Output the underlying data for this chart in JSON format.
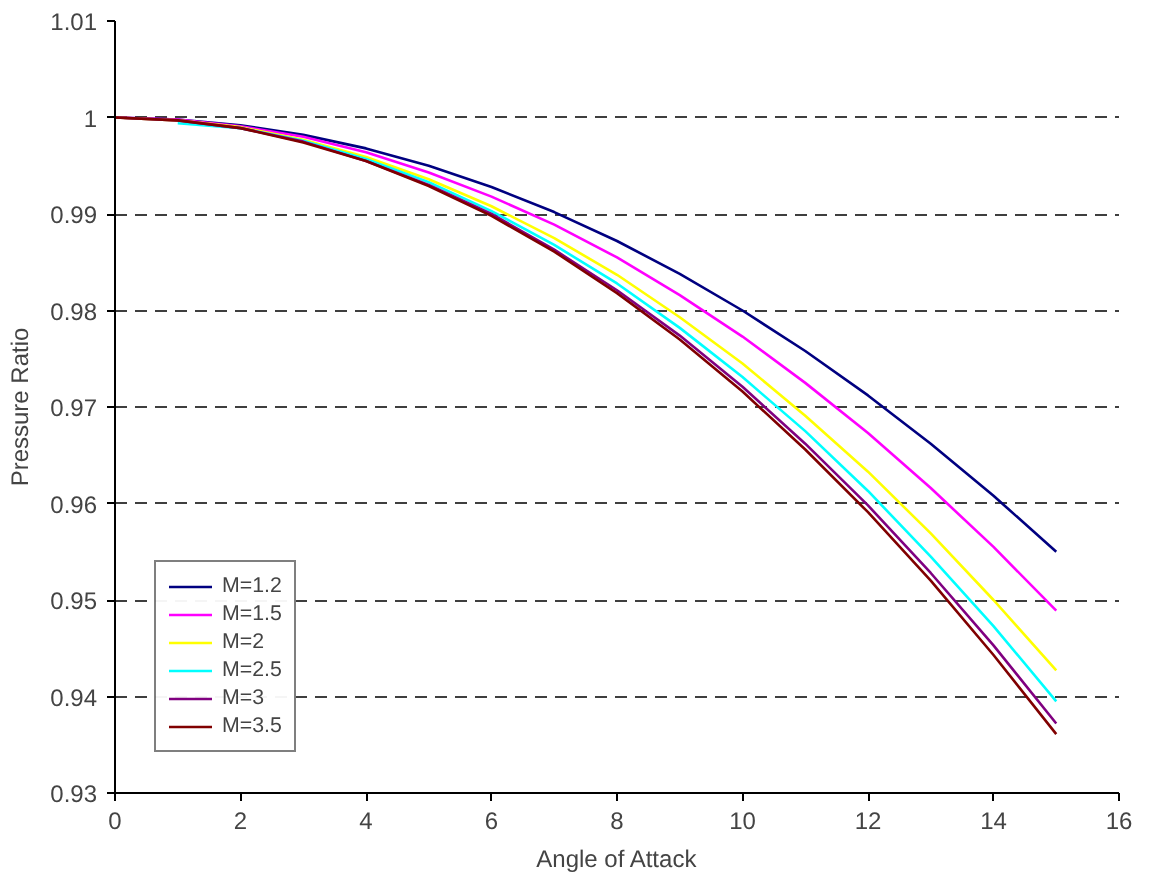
{
  "chart_data": {
    "type": "line",
    "xlabel": "Angle of Attack",
    "ylabel": "Pressure Ratio",
    "x": [
      0,
      1,
      2,
      3,
      4,
      5,
      6,
      7,
      8,
      9,
      10,
      11,
      12,
      13,
      14,
      15
    ],
    "xlim": [
      0,
      16
    ],
    "xticks": [
      0,
      2,
      4,
      6,
      8,
      10,
      12,
      14,
      16
    ],
    "ylim": [
      0.93,
      1.01
    ],
    "yticks": [
      0.93,
      0.94,
      0.95,
      0.96,
      0.97,
      0.98,
      0.99,
      1,
      1.01
    ],
    "grid": "y",
    "legend": "bottom left",
    "marker": "none",
    "line_style": "solid",
    "series": [
      {
        "name": "M=1.2",
        "color": "#000080",
        "values": [
          1,
          0.9998,
          0.9992,
          0.9982,
          0.9968,
          0.995,
          0.9928,
          0.9902,
          0.9872,
          0.9838,
          0.98,
          0.9758,
          0.9712,
          0.9662,
          0.9608,
          0.955
        ]
      },
      {
        "name": "M=1.5",
        "color": "#ff00ff",
        "values": [
          1,
          0.9998,
          0.9991,
          0.998,
          0.9964,
          0.9943,
          0.9918,
          0.9889,
          0.9855,
          0.9816,
          0.9773,
          0.9725,
          0.9673,
          0.9616,
          0.9555,
          0.9489
        ]
      },
      {
        "name": "M=2",
        "color": "#ffff00",
        "values": [
          1,
          0.9997,
          0.999,
          0.9977,
          0.9959,
          0.9936,
          0.9908,
          0.9875,
          0.9837,
          0.9793,
          0.9745,
          0.9691,
          0.9633,
          0.9569,
          0.95,
          0.9427
        ]
      },
      {
        "name": "M=2.5",
        "color": "#00ffff",
        "values": [
          null,
          0.9994,
          0.9989,
          0.9976,
          0.9957,
          0.9933,
          0.9903,
          0.9868,
          0.9828,
          0.9782,
          0.9731,
          0.9675,
          0.9613,
          0.9545,
          0.9473,
          0.9395
        ]
      },
      {
        "name": "M=3",
        "color": "#800080",
        "values": [
          1,
          0.9997,
          0.9989,
          0.9975,
          0.9955,
          0.993,
          0.99,
          0.9863,
          0.9821,
          0.9774,
          0.9721,
          0.9662,
          0.9598,
          0.9528,
          0.9453,
          0.9372
        ]
      },
      {
        "name": "M=3.5",
        "color": "#800000",
        "values": [
          1,
          0.9997,
          0.9989,
          0.9974,
          0.9955,
          0.9929,
          0.9898,
          0.9861,
          0.9818,
          0.977,
          0.9716,
          0.9656,
          0.9591,
          0.952,
          0.9443,
          0.9361
        ]
      }
    ]
  }
}
